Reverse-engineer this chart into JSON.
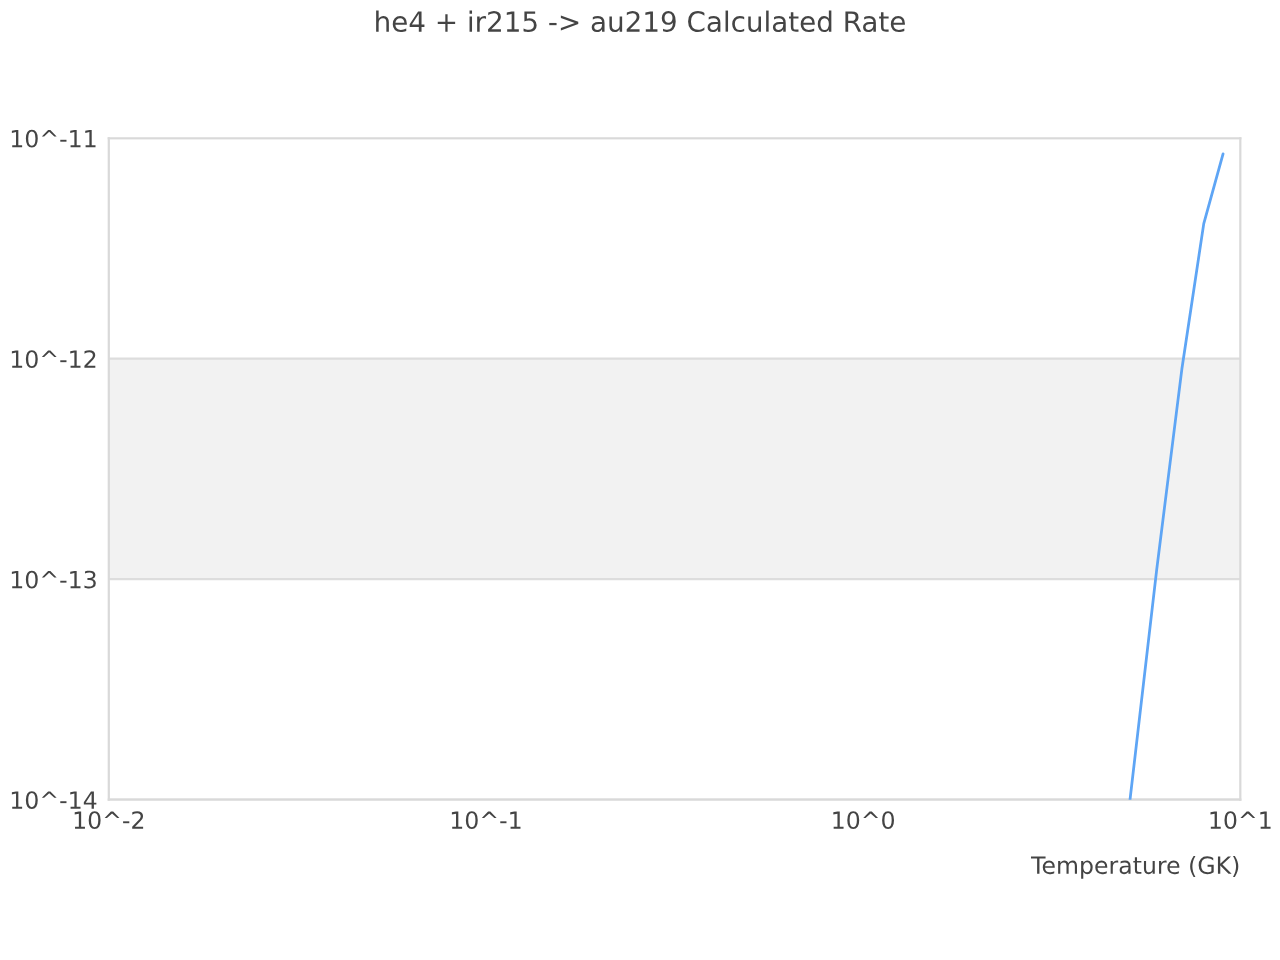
{
  "chart_data": {
    "type": "line",
    "title": "he4 + ir215 -> au219 Calculated Rate",
    "xlabel": "Temperature (GK)",
    "x": [
      5.1,
      6,
      7,
      8,
      9
    ],
    "series": [
      {
        "color": "#5ea5f5",
        "values": [
          1e-14,
          1.1e-13,
          9e-13,
          4.1e-12,
          8.5e-12
        ]
      }
    ],
    "log": "xy",
    "xlim": [
      0.01,
      10
    ],
    "ylim": [
      1e-14,
      1e-11
    ],
    "xticks": [
      {
        "value": 0.01,
        "label": "10^-2"
      },
      {
        "value": 0.1,
        "label": "10^-1"
      },
      {
        "value": 1,
        "label": "10^0"
      },
      {
        "value": 10,
        "label": "10^1"
      }
    ],
    "yticks": [
      {
        "value": 1e-14,
        "label": "10^-14"
      },
      {
        "value": 1e-13,
        "label": "10^-13"
      },
      {
        "value": 1e-12,
        "label": "10^-12"
      },
      {
        "value": 1e-11,
        "label": "10^-11"
      }
    ],
    "grid": "y",
    "bands": [
      {
        "axis": "y",
        "from": 1e-13,
        "to": 1e-12,
        "color": "#f2f2f2"
      }
    ]
  }
}
